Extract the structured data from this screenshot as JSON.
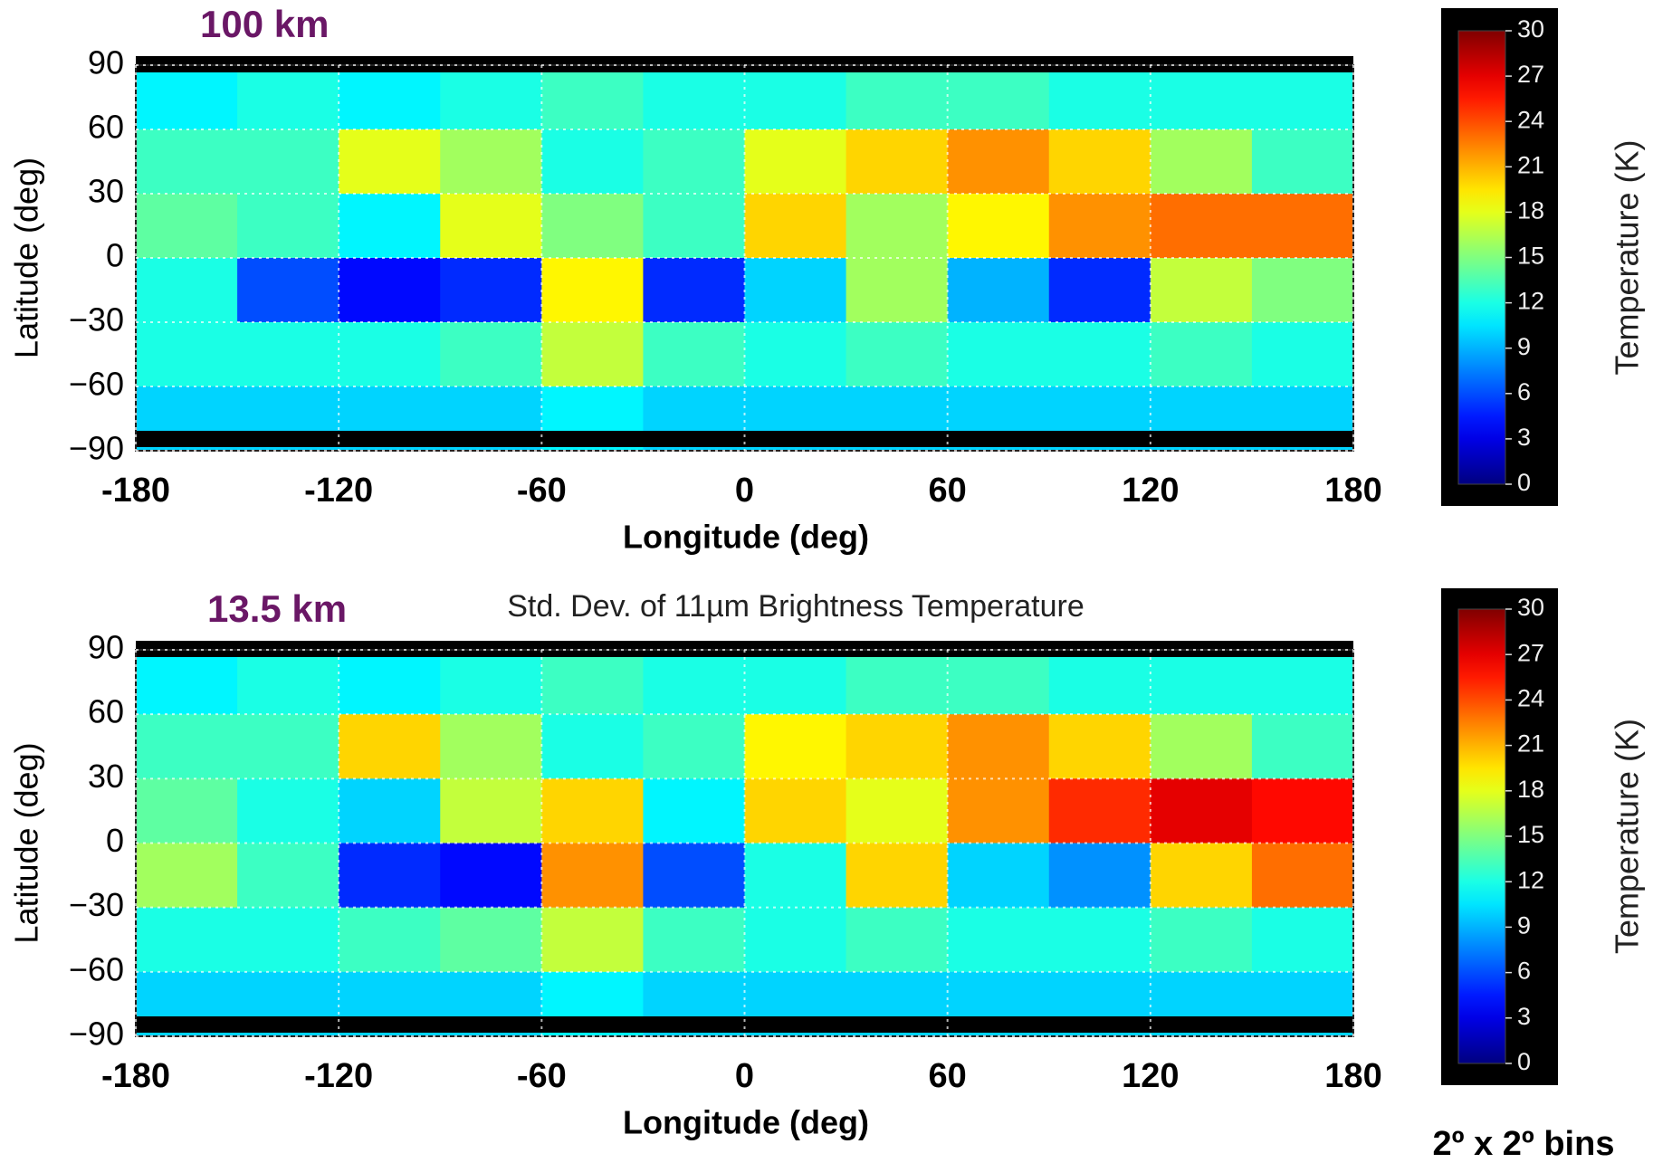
{
  "chart_data": [
    {
      "type": "heatmap",
      "title": "100 km",
      "xlabel": "Longitude (deg)",
      "ylabel": "Latitude (deg)",
      "xbins": [
        -180,
        -150,
        -120,
        -90,
        -60,
        -30,
        0,
        30,
        60,
        90,
        120,
        150,
        180
      ],
      "ybins": [
        90,
        60,
        30,
        0,
        -30,
        -60,
        -90
      ],
      "values": [
        [
          11,
          12,
          11,
          12,
          13,
          12,
          12,
          13,
          13,
          12,
          12,
          12
        ],
        [
          13,
          13,
          18,
          16,
          12,
          13,
          18,
          20,
          22,
          20,
          16,
          13
        ],
        [
          14,
          13,
          11,
          18,
          15,
          13,
          20,
          16,
          19,
          22,
          23,
          23
        ],
        [
          12,
          6,
          4,
          5,
          19,
          5,
          10,
          16,
          9,
          5,
          17,
          15
        ],
        [
          12,
          12,
          12,
          13,
          17,
          13,
          12,
          13,
          12,
          12,
          13,
          12
        ],
        [
          10,
          10,
          10,
          10,
          11,
          10,
          10,
          10,
          10,
          10,
          10,
          10
        ]
      ],
      "xlim": [
        -180,
        180
      ],
      "xticks": [
        -180,
        -120,
        -60,
        0,
        60,
        120,
        180
      ],
      "ylim": [
        -90,
        90
      ],
      "yticks": [
        90,
        60,
        30,
        0,
        {
          "value": -30,
          "label": "−30"
        },
        {
          "value": -60,
          "label": "−60"
        },
        {
          "value": -90,
          "label": "−90"
        }
      ],
      "grid": true,
      "colorbar": {
        "label": "Temperature (K)",
        "colormap": "jet",
        "lim": [
          0,
          30
        ],
        "ticks": [
          0,
          3,
          6,
          9,
          12,
          15,
          18,
          21,
          24,
          27,
          30
        ]
      }
    },
    {
      "type": "heatmap",
      "title": "13.5 km",
      "subtitle": "Std. Dev. of 11µm Brightness Temperature",
      "xlabel": "Longitude (deg)",
      "ylabel": "Latitude (deg)",
      "xbins": [
        -180,
        -150,
        -120,
        -90,
        -60,
        -30,
        0,
        30,
        60,
        90,
        120,
        150,
        180
      ],
      "ybins": [
        90,
        60,
        30,
        0,
        -30,
        -60,
        -90
      ],
      "values": [
        [
          11,
          12,
          11,
          12,
          13,
          12,
          12,
          13,
          13,
          12,
          12,
          12
        ],
        [
          13,
          13,
          20,
          16,
          12,
          13,
          19,
          20,
          22,
          20,
          16,
          13
        ],
        [
          14,
          12,
          10,
          17,
          20,
          11,
          20,
          18,
          22,
          25,
          27,
          26
        ],
        [
          16,
          13,
          5,
          4,
          22,
          6,
          12,
          20,
          10,
          8,
          20,
          23
        ],
        [
          12,
          12,
          13,
          14,
          17,
          13,
          12,
          13,
          12,
          12,
          13,
          12
        ],
        [
          10,
          10,
          10,
          10,
          11,
          10,
          10,
          10,
          10,
          10,
          10,
          10
        ]
      ],
      "xlim": [
        -180,
        180
      ],
      "xticks": [
        -180,
        -120,
        -60,
        0,
        60,
        120,
        180
      ],
      "ylim": [
        -90,
        90
      ],
      "yticks": [
        90,
        60,
        30,
        0,
        {
          "value": -30,
          "label": "−30"
        },
        {
          "value": -60,
          "label": "−60"
        },
        {
          "value": -90,
          "label": "−90"
        }
      ],
      "grid": true,
      "colorbar": {
        "label": "Temperature (K)",
        "colormap": "jet",
        "lim": [
          0,
          30
        ],
        "ticks": [
          0,
          3,
          6,
          9,
          12,
          15,
          18,
          21,
          24,
          27,
          30
        ]
      }
    }
  ],
  "footnote": "2º x 2º bins"
}
